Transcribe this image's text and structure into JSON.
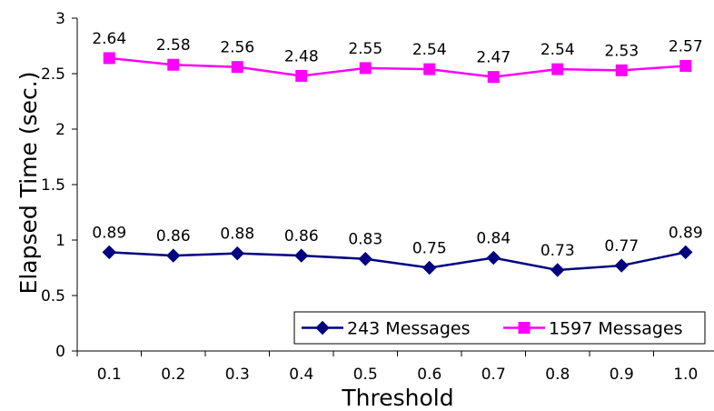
{
  "chart_data": {
    "type": "line",
    "categories": [
      "0.1",
      "0.2",
      "0.3",
      "0.4",
      "0.5",
      "0.6",
      "0.7",
      "0.8",
      "0.9",
      "1.0"
    ],
    "series": [
      {
        "name": "243 Messages",
        "values": [
          0.89,
          0.86,
          0.88,
          0.86,
          0.83,
          0.75,
          0.84,
          0.73,
          0.77,
          0.89
        ],
        "labels": [
          "0.89",
          "0.86",
          "0.88",
          "0.86",
          "0.83",
          "0.75",
          "0.84",
          "0.73",
          "0.77",
          "0.89"
        ],
        "color": "#000080",
        "marker": "diamond"
      },
      {
        "name": "1597 Messages",
        "values": [
          2.64,
          2.58,
          2.56,
          2.48,
          2.55,
          2.54,
          2.47,
          2.54,
          2.53,
          2.57
        ],
        "labels": [
          "2.64",
          "2.58",
          "2.56",
          "2.48",
          "2.55",
          "2.54",
          "2.47",
          "2.54",
          "2.53",
          "2.57"
        ],
        "color": "#ff00ff",
        "marker": "square"
      }
    ],
    "xlabel": "Threshold",
    "ylabel": "Elapsed Time (sec.)",
    "ylim": [
      0,
      3
    ],
    "yticks": [
      "0",
      "0.5",
      "1",
      "1.5",
      "2",
      "2.5",
      "3"
    ],
    "grid": false,
    "legend_position": "bottom-right"
  }
}
